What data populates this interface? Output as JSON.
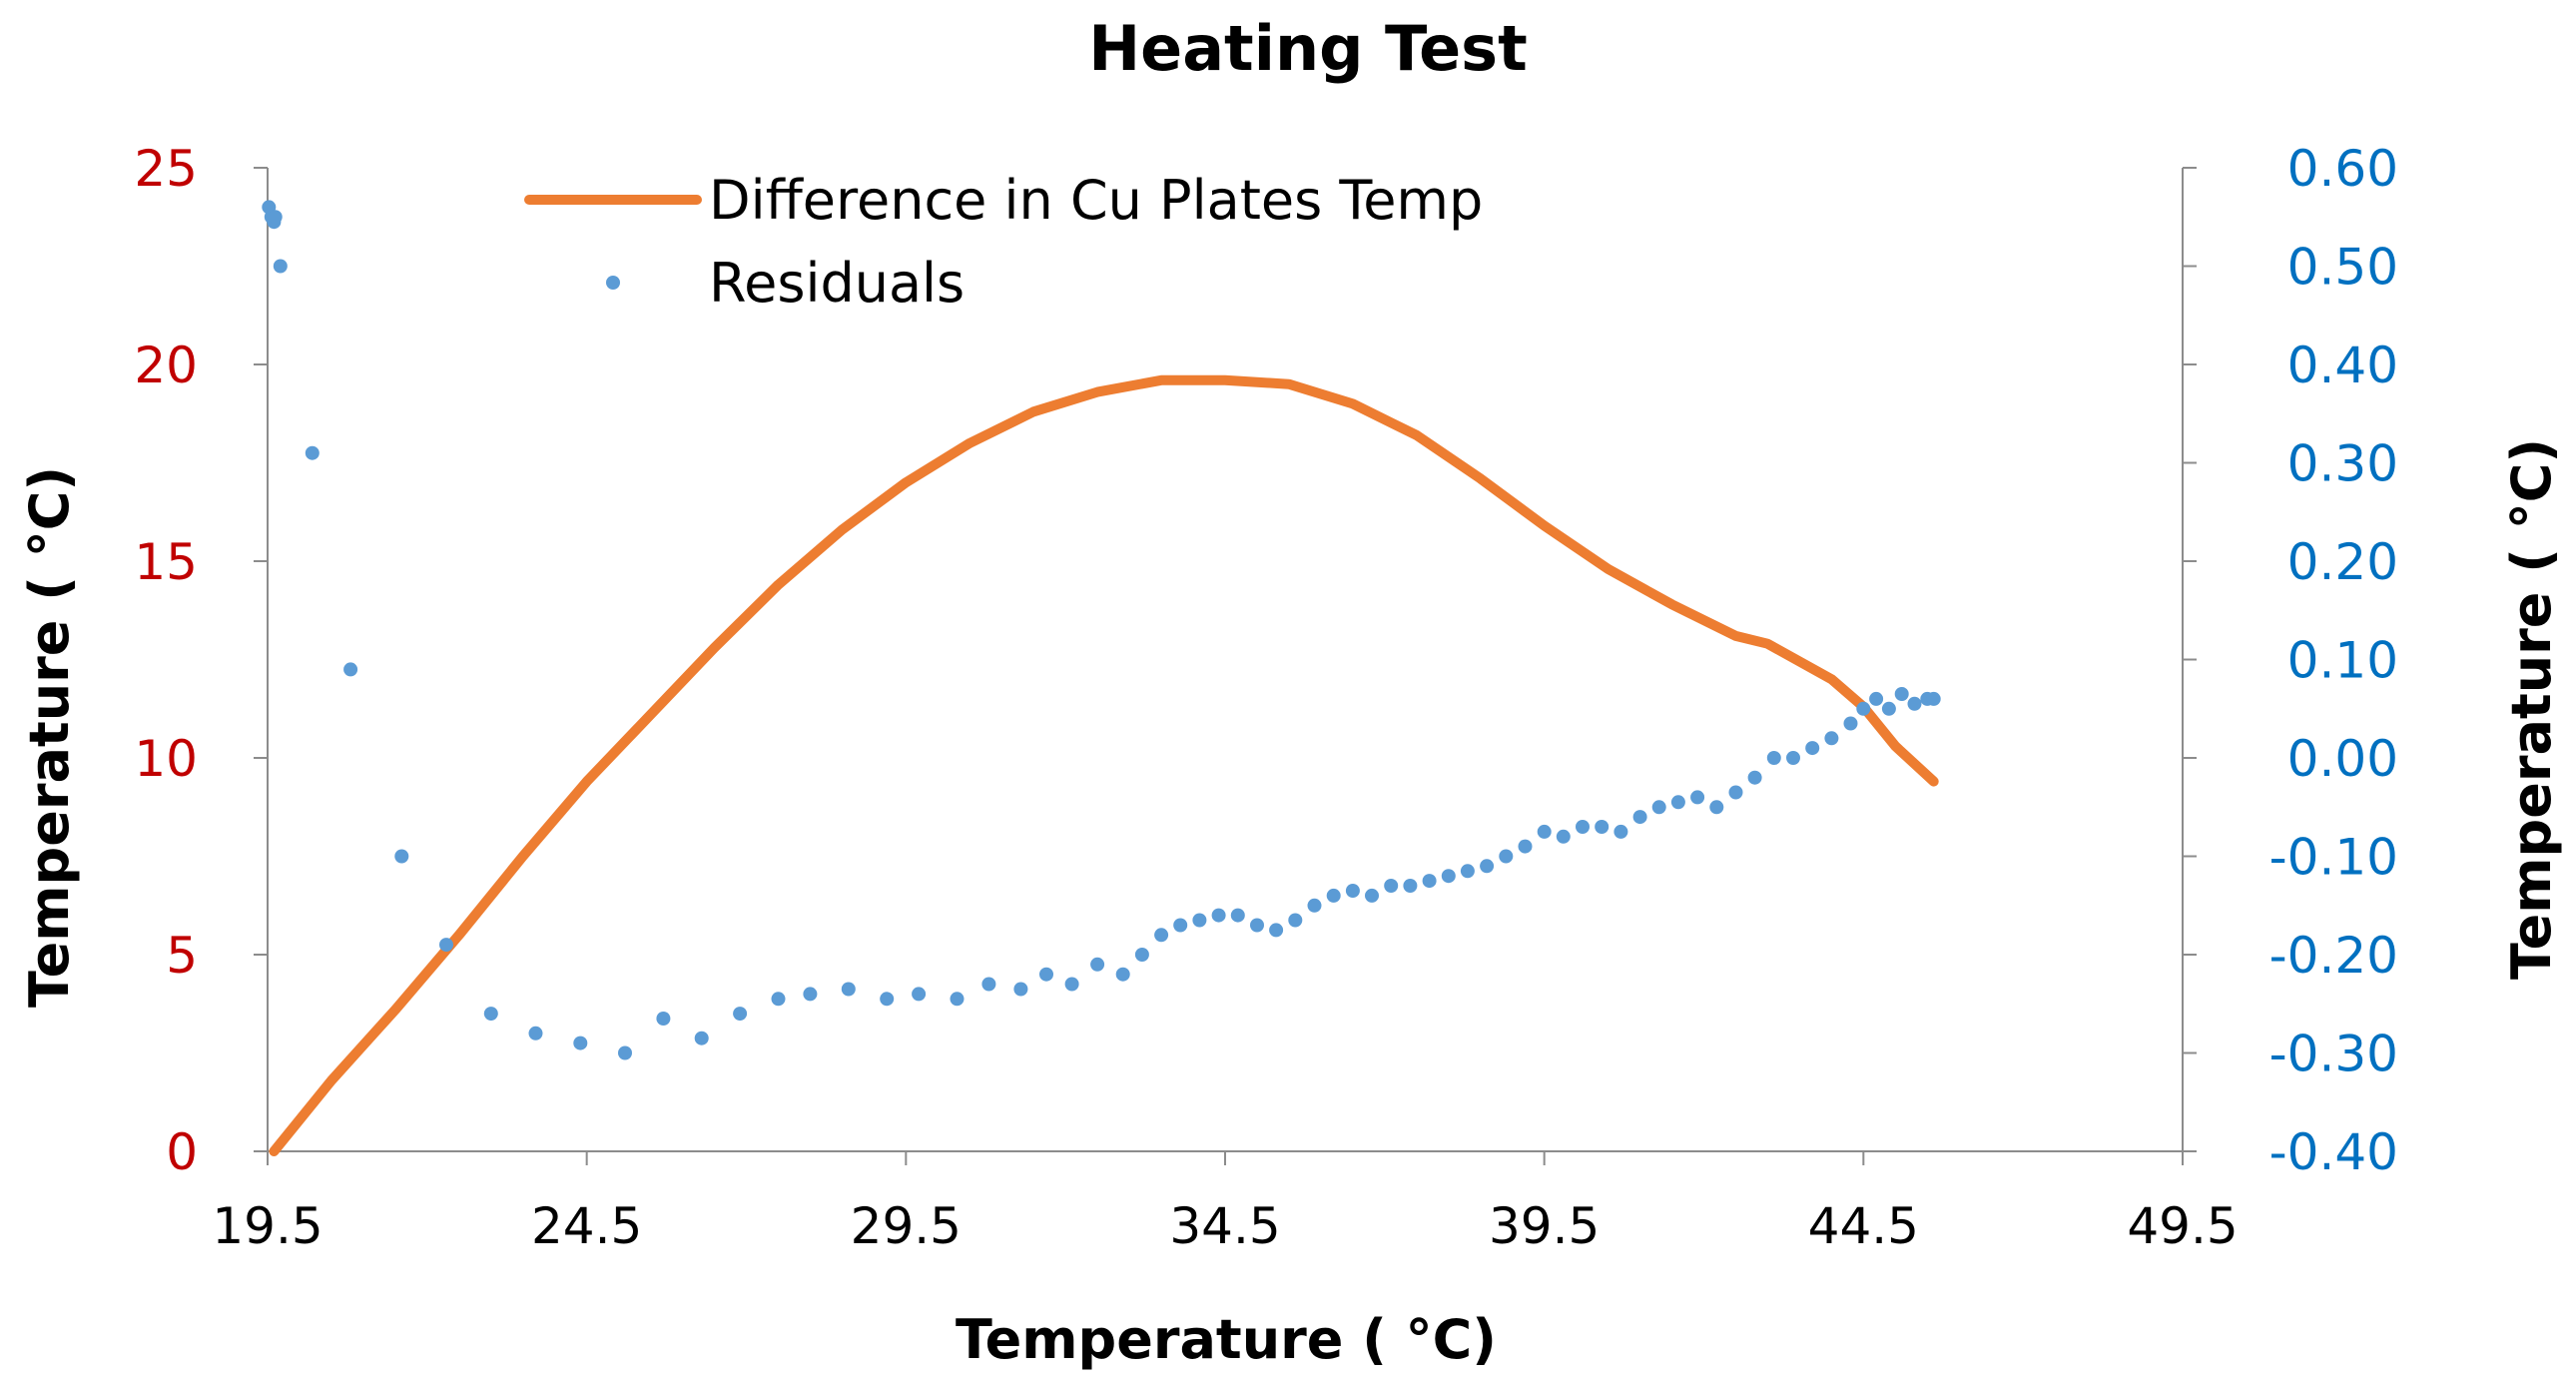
{
  "chart_data": {
    "type": "line",
    "title": "Heating Test",
    "xlabel": "Temperature ( °C)",
    "ylabel": "Temperature ( °C)",
    "y2label": "Temperature ( °C)",
    "xlim": [
      19.5,
      49.5
    ],
    "ylim": [
      0,
      25
    ],
    "y2lim": [
      -0.4,
      0.6
    ],
    "x_ticks": [
      "19.5",
      "24.5",
      "29.5",
      "34.5",
      "39.5",
      "44.5",
      "49.5"
    ],
    "y_ticks": [
      "0",
      "5",
      "10",
      "15",
      "20",
      "25"
    ],
    "y2_ticks": [
      "-0.40",
      "-0.30",
      "-0.20",
      "-0.10",
      "0.00",
      "0.10",
      "0.20",
      "0.30",
      "0.40",
      "0.50",
      "0.60"
    ],
    "grid": false,
    "legend_position": "top",
    "colors": {
      "line": "#ed7d31",
      "points": "#5b9bd5",
      "left_axis": "#c00000",
      "right_axis": "#0070c0"
    },
    "series": [
      {
        "name": "Difference in Cu Plates Temp",
        "type": "line",
        "axis": "left",
        "x": [
          19.6,
          20.5,
          21.5,
          22.5,
          23.5,
          24.5,
          25.5,
          26.5,
          27.5,
          28.5,
          29.5,
          30.5,
          31.5,
          32.5,
          33.5,
          34.5,
          35.5,
          36.5,
          37.5,
          38.5,
          39.5,
          40.5,
          41.5,
          42.5,
          43.0,
          44.0,
          44.5,
          45.0,
          45.6
        ],
        "y": [
          0,
          1.8,
          3.6,
          5.5,
          7.5,
          9.4,
          11.1,
          12.8,
          14.4,
          15.8,
          17.0,
          18.0,
          18.8,
          19.3,
          19.6,
          19.6,
          19.5,
          19.0,
          18.2,
          17.1,
          15.9,
          14.8,
          13.9,
          13.1,
          12.9,
          12.0,
          11.3,
          10.3,
          9.4
        ]
      },
      {
        "name": "Residuals",
        "type": "scatter",
        "axis": "right",
        "x": [
          19.52,
          19.56,
          19.6,
          19.62,
          19.7,
          20.2,
          20.8,
          21.6,
          22.3,
          23.0,
          23.7,
          24.4,
          25.1,
          25.7,
          26.3,
          26.9,
          27.5,
          28.0,
          28.6,
          29.2,
          29.7,
          30.3,
          30.8,
          31.3,
          31.7,
          32.1,
          32.5,
          32.9,
          33.2,
          33.5,
          33.8,
          34.1,
          34.4,
          34.7,
          35.0,
          35.3,
          35.6,
          35.9,
          36.2,
          36.5,
          36.8,
          37.1,
          37.4,
          37.7,
          38.0,
          38.3,
          38.6,
          38.9,
          39.2,
          39.5,
          39.8,
          40.1,
          40.4,
          40.7,
          41.0,
          41.3,
          41.6,
          41.9,
          42.2,
          42.5,
          42.8,
          43.1,
          43.4,
          43.7,
          44.0,
          44.3,
          44.5,
          44.7,
          44.9,
          45.1,
          45.3,
          45.5,
          45.6
        ],
        "y": [
          0.56,
          0.55,
          0.545,
          0.55,
          0.5,
          0.31,
          0.09,
          -0.1,
          -0.19,
          -0.26,
          -0.28,
          -0.29,
          -0.3,
          -0.265,
          -0.285,
          -0.26,
          -0.245,
          -0.24,
          -0.235,
          -0.245,
          -0.24,
          -0.245,
          -0.23,
          -0.235,
          -0.22,
          -0.23,
          -0.21,
          -0.22,
          -0.2,
          -0.18,
          -0.17,
          -0.165,
          -0.16,
          -0.16,
          -0.17,
          -0.175,
          -0.165,
          -0.15,
          -0.14,
          -0.135,
          -0.14,
          -0.13,
          -0.13,
          -0.125,
          -0.12,
          -0.115,
          -0.11,
          -0.1,
          -0.09,
          -0.075,
          -0.08,
          -0.07,
          -0.07,
          -0.075,
          -0.06,
          -0.05,
          -0.045,
          -0.04,
          -0.05,
          -0.035,
          -0.02,
          0.0,
          0.0,
          0.01,
          0.02,
          0.035,
          0.05,
          0.06,
          0.05,
          0.065,
          0.055,
          0.06,
          0.06
        ]
      }
    ]
  }
}
